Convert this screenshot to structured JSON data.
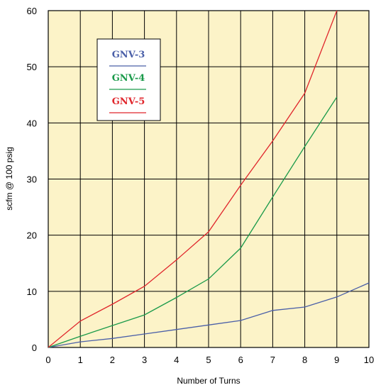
{
  "chart_data": {
    "type": "line",
    "title": "",
    "xlabel": "Number of Turns",
    "ylabel": "scfm @ 100 psig",
    "xlim": [
      0,
      10
    ],
    "ylim": [
      0,
      60
    ],
    "x_ticks": [
      "0",
      "1",
      "2",
      "3",
      "4",
      "5",
      "6",
      "7",
      "8",
      "9",
      "10"
    ],
    "y_ticks": [
      "0",
      "10",
      "20",
      "30",
      "40",
      "50",
      "60"
    ],
    "grid": true,
    "background_color": "#fcf3c8",
    "legend_position": "top-left",
    "series": [
      {
        "name": "GNV-3",
        "color": "#4a5fa8",
        "x": [
          0,
          1,
          2,
          3,
          4,
          5,
          6,
          7,
          8,
          9,
          10
        ],
        "y": [
          0,
          1,
          1.6,
          2.4,
          3.2,
          4.0,
          4.8,
          6.6,
          7.2,
          9.0,
          11.5
        ]
      },
      {
        "name": "GNV-4",
        "color": "#1a9a4a",
        "x": [
          0,
          1,
          2,
          3,
          4,
          5,
          6,
          7,
          8,
          9
        ],
        "y": [
          0,
          2,
          3.9,
          5.8,
          8.9,
          12.2,
          17.7,
          26.8,
          35.8,
          44.6
        ]
      },
      {
        "name": "GNV-5",
        "color": "#e0262c",
        "x": [
          0,
          1,
          2,
          3,
          4,
          5,
          6,
          7,
          8,
          9
        ],
        "y": [
          0,
          4.7,
          7.7,
          10.9,
          15.6,
          20.6,
          28.9,
          36.8,
          45.3,
          62.0
        ]
      }
    ]
  }
}
